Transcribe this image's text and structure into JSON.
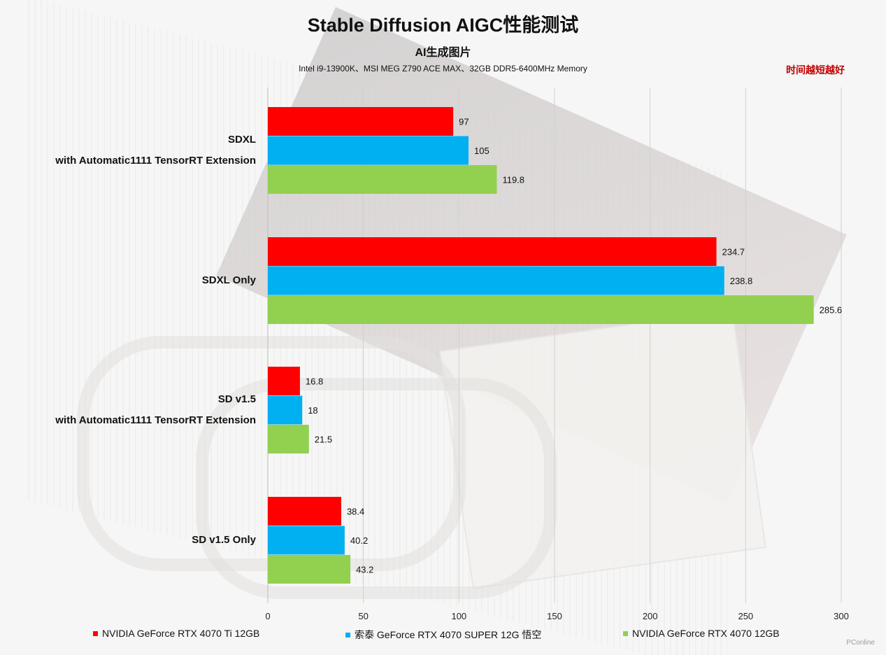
{
  "header": {
    "title": "Stable Diffusion AIGC性能测试",
    "subtitle": "AI生成图片",
    "specs": "Intel i9-13900K、MSI MEG Z790 ACE MAX、32GB DDR5-6400MHz Memory",
    "note": "时间越短越好"
  },
  "watermark": "PConline",
  "chart_data": {
    "type": "bar",
    "orientation": "horizontal",
    "title": "Stable Diffusion AIGC性能测试",
    "subtitle": "AI生成图片",
    "xlabel": "",
    "ylabel": "",
    "xlim": [
      0,
      300
    ],
    "xticks": [
      0,
      50,
      100,
      150,
      200,
      250,
      300
    ],
    "grid": true,
    "legend_position": "bottom",
    "categories": [
      [
        "SDXL",
        "with Automatic1111 TensorRT Extension"
      ],
      [
        "SDXL Only"
      ],
      [
        "SD v1.5",
        "with Automatic1111 TensorRT Extension"
      ],
      [
        "SD v1.5 Only"
      ]
    ],
    "series": [
      {
        "name": "NVIDIA GeForce RTX 4070 Ti 12GB",
        "color": "#ff0000",
        "values": [
          97,
          234.7,
          16.8,
          38.4
        ]
      },
      {
        "name": "索泰 GeForce RTX 4070 SUPER 12G 悟空",
        "color": "#00b0f0",
        "values": [
          105,
          238.8,
          18,
          40.2
        ]
      },
      {
        "name": "NVIDIA GeForce RTX 4070 12GB",
        "color": "#92d050",
        "values": [
          119.8,
          285.6,
          21.5,
          43.2
        ]
      }
    ]
  }
}
